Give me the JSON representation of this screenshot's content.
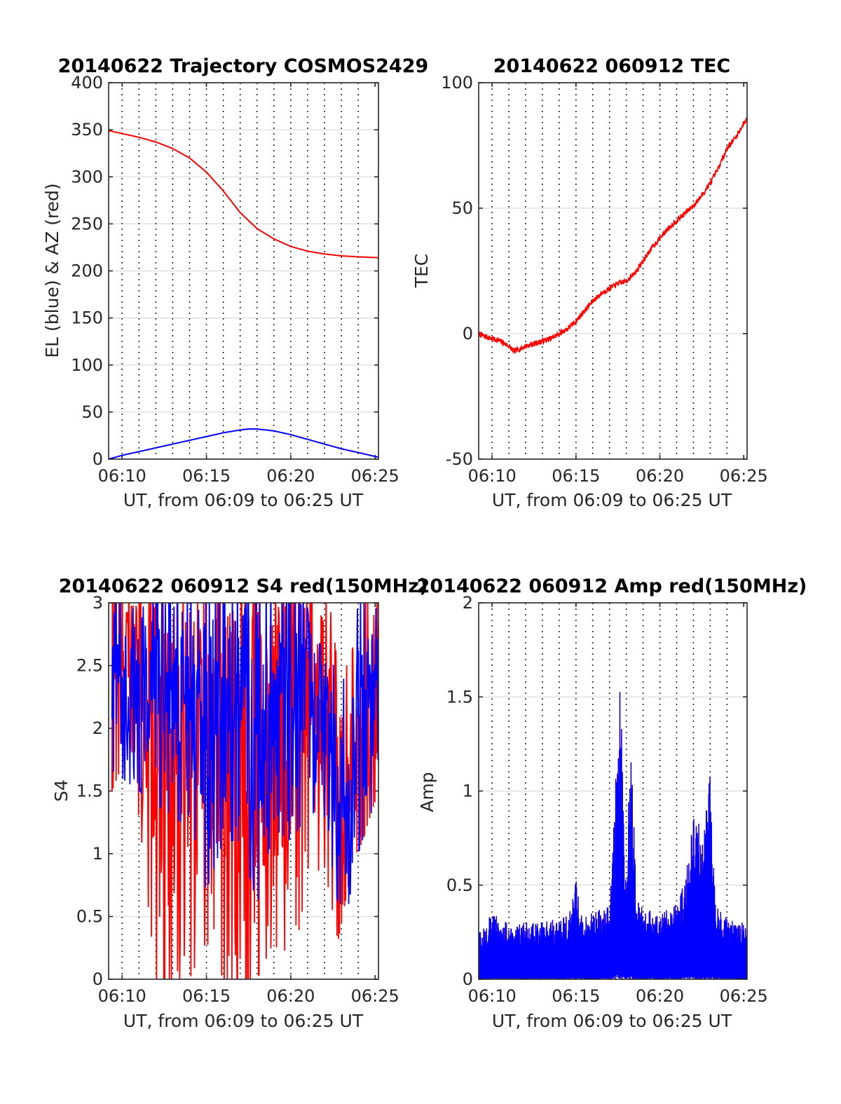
{
  "colors": {
    "red": "#ff0000",
    "blue": "#0000ff",
    "axes": "#262626"
  },
  "chart_data": [
    {
      "type": "line",
      "title": "20140622 Trajectory COSMOS2429",
      "xlabel": "UT, from 06:09 to 06:25 UT",
      "ylabel": "EL (blue) & AZ (red)",
      "xlim": [
        9.2,
        25.2
      ],
      "ylim": [
        0,
        400
      ],
      "yticks": [
        0,
        50,
        100,
        150,
        200,
        250,
        300,
        350,
        400
      ],
      "xticks": [
        10,
        15,
        20,
        25
      ],
      "xticklabels": [
        "06:10",
        "06:15",
        "06:20",
        "06:25"
      ],
      "vgrid_minutes": [
        10,
        11,
        12,
        13,
        14,
        15,
        16,
        17,
        18,
        19,
        20,
        21,
        22,
        23,
        24
      ],
      "series": [
        {
          "color": "#ff0000",
          "x": [
            9.2,
            10,
            11,
            12,
            13,
            14,
            15,
            16,
            17,
            18,
            19,
            20,
            21,
            22,
            23,
            24,
            25.2
          ],
          "y": [
            349,
            346,
            342,
            337,
            330,
            320,
            305,
            285,
            262,
            245,
            234,
            226,
            221,
            218,
            216,
            215,
            214
          ]
        },
        {
          "color": "#0000ff",
          "x": [
            9.2,
            10,
            11,
            12,
            13,
            14,
            15,
            16,
            17,
            17.5,
            18,
            19,
            20,
            21,
            22,
            23,
            24,
            25.2
          ],
          "y": [
            0,
            4,
            8,
            12,
            16,
            20,
            24,
            28,
            31,
            32,
            32,
            30,
            26,
            21,
            16,
            11,
            7,
            2
          ]
        }
      ]
    },
    {
      "type": "line",
      "title": "20140622 060912 TEC",
      "xlabel": "UT, from 06:09 to 06:25 UT",
      "ylabel": "TEC",
      "xlim": [
        9.2,
        25.2
      ],
      "ylim": [
        -50,
        100
      ],
      "yticks": [
        -50,
        0,
        50,
        100
      ],
      "xticks": [
        10,
        15,
        20,
        25
      ],
      "xticklabels": [
        "06:10",
        "06:15",
        "06:20",
        "06:25"
      ],
      "vgrid_minutes": [
        10,
        11,
        12,
        13,
        14,
        15,
        16,
        17,
        18,
        19,
        20,
        21,
        22,
        23,
        24
      ],
      "series": [
        {
          "color": "#ff0000",
          "x": [
            9.2,
            9.5,
            10,
            10.5,
            11,
            11.3,
            11.7,
            12,
            12.5,
            13,
            13.5,
            14,
            14.5,
            15,
            15.5,
            16,
            16.5,
            17,
            17.5,
            18,
            18.5,
            19,
            19.5,
            20,
            20.5,
            21,
            21.5,
            22,
            22.5,
            23,
            23.5,
            24,
            24.5,
            25.2
          ],
          "y": [
            0,
            -1,
            -2,
            -3,
            -5,
            -7,
            -6,
            -5,
            -4,
            -3,
            -2,
            0,
            2,
            5,
            9,
            13,
            16,
            18,
            20,
            21,
            24,
            29,
            34,
            38,
            42,
            45,
            48,
            51,
            55,
            60,
            66,
            74,
            78,
            86
          ]
        }
      ]
    },
    {
      "type": "line",
      "title": "20140622 060912 S4 red(150MHz)",
      "xlabel": "UT, from 06:09 to 06:25 UT",
      "ylabel": "S4",
      "xlim": [
        9.2,
        25.2
      ],
      "ylim": [
        0,
        3
      ],
      "yticks": [
        0,
        0.5,
        1,
        1.5,
        2,
        2.5,
        3
      ],
      "xticks": [
        10,
        15,
        20,
        25
      ],
      "xticklabels": [
        "06:10",
        "06:15",
        "06:20",
        "06:25"
      ],
      "vgrid_minutes": [
        10,
        11,
        12,
        13,
        14,
        15,
        16,
        17,
        18,
        19,
        20,
        21,
        22,
        23,
        24
      ],
      "noise_bands": [
        {
          "color": "#ff0000",
          "x": [
            9.4,
            10,
            11,
            12,
            13,
            14,
            15,
            16,
            17,
            18,
            19,
            20,
            21,
            22,
            22.8,
            23.5,
            24,
            25.2
          ],
          "lo": [
            1.5,
            1.7,
            1.3,
            0.0,
            0.0,
            0.0,
            0.3,
            0.0,
            0.0,
            0.0,
            0.3,
            0.0,
            0.8,
            0.9,
            0.3,
            0.8,
            1.0,
            1.5
          ],
          "hi": [
            3.0,
            3.0,
            3.0,
            3.0,
            3.0,
            3.0,
            3.0,
            3.0,
            3.0,
            3.0,
            3.0,
            3.0,
            3.0,
            3.0,
            2.2,
            2.2,
            2.6,
            3.0
          ]
        },
        {
          "color": "#0000ff",
          "x": [
            9.4,
            10,
            11,
            12,
            13,
            14,
            15,
            16,
            17,
            18,
            19,
            20,
            21,
            22,
            22.8,
            23.5,
            24,
            25.2
          ],
          "lo": [
            1.5,
            1.6,
            1.5,
            1.4,
            1.3,
            1.2,
            0.7,
            1.1,
            1.1,
            0.6,
            1.2,
            1.1,
            1.3,
            1.3,
            0.6,
            0.6,
            1.0,
            1.5
          ],
          "hi": [
            3.0,
            3.0,
            3.0,
            3.0,
            3.0,
            3.0,
            3.0,
            3.0,
            3.0,
            3.0,
            3.0,
            3.0,
            3.0,
            2.6,
            2.0,
            2.2,
            2.7,
            3.0
          ]
        }
      ]
    },
    {
      "type": "line",
      "title": "20140622 060912 Amp red(150MHz)",
      "xlabel": "UT, from 06:09 to 06:25 UT",
      "ylabel": "Amp",
      "xlim": [
        9.2,
        25.2
      ],
      "ylim": [
        0,
        2
      ],
      "yticks": [
        0,
        0.5,
        1,
        1.5,
        2
      ],
      "yticklabels": [
        "0",
        "0.5",
        "1",
        "1.5",
        "2"
      ],
      "xticks": [
        10,
        15,
        20,
        25
      ],
      "xticklabels": [
        "06:10",
        "06:15",
        "06:20",
        "06:25"
      ],
      "vgrid_minutes": [
        10,
        11,
        12,
        13,
        14,
        15,
        16,
        17,
        18,
        19,
        20,
        21,
        22,
        23,
        24
      ],
      "series": [
        {
          "color": "#0000ff",
          "x": [
            9.2,
            10,
            11,
            12,
            13,
            14,
            14.5,
            15,
            15.3,
            16,
            17,
            17.7,
            17.9,
            18.3,
            18.6,
            19,
            20,
            21,
            21.5,
            22,
            22.5,
            23,
            23.3,
            24,
            25.2
          ],
          "y": [
            0.25,
            0.35,
            0.3,
            0.3,
            0.32,
            0.32,
            0.35,
            0.55,
            0.35,
            0.35,
            0.4,
            1.7,
            0.5,
            1.25,
            0.45,
            0.38,
            0.35,
            0.4,
            0.55,
            0.9,
            0.8,
            1.15,
            0.4,
            0.33,
            0.3
          ]
        }
      ]
    }
  ]
}
